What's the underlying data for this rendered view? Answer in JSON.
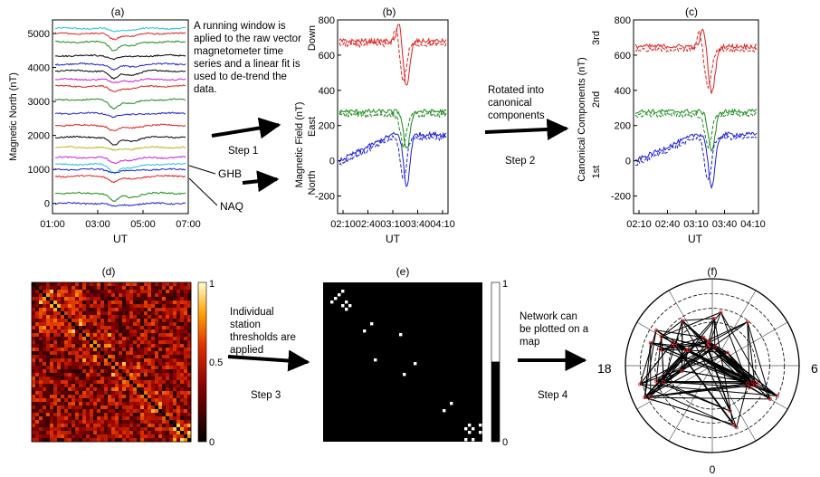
{
  "panels": {
    "a": {
      "label": "(a)",
      "ylabel": "Magnetic North (nT)",
      "xlabel": "UT",
      "yticks": [
        "0",
        "1000",
        "2000",
        "3000",
        "4000",
        "5000"
      ],
      "xticks": [
        "01:00",
        "03:00",
        "05:00",
        "07:00"
      ],
      "callouts": [
        "GHB",
        "NAQ"
      ]
    },
    "b": {
      "label": "(b)",
      "ylabel": "Magnetic Field (nT)",
      "xlabel": "UT",
      "component_labels": [
        "Down",
        "East",
        "North"
      ],
      "yticks": [
        "800",
        "600",
        "400",
        "200",
        "0",
        "-200"
      ],
      "xticks": [
        "02:10",
        "02:40",
        "03:10",
        "03:40",
        "04:10"
      ]
    },
    "c": {
      "label": "(c)",
      "ylabel": "Canonical Components (nT)",
      "xlabel": "UT",
      "component_labels": [
        "3rd",
        "2nd",
        "1st"
      ],
      "yticks": [
        "800",
        "600",
        "400",
        "200",
        "0",
        "-200"
      ],
      "xticks": [
        "02:10",
        "02:40",
        "03:10",
        "03:40",
        "04:10"
      ]
    },
    "d": {
      "label": "(d)",
      "colorbar_ticks": [
        "1",
        "0.5",
        "0"
      ]
    },
    "e": {
      "label": "(e)",
      "colorbar_ticks": [
        "1",
        "0"
      ]
    },
    "f": {
      "label": "(f)",
      "clock_labels": [
        "18",
        "6",
        "0"
      ]
    }
  },
  "annotations": {
    "text1": "A running window is aplied to the raw vector magnetometer time series and a linear fit is used to de-trend the data.",
    "text2": "Rotated into canonical components",
    "text3": "Individual station thresholds are applied",
    "text4": "Network can be plotted on a map",
    "step1": "Step 1",
    "step2": "Step 2",
    "step3": "Step 3",
    "step4": "Step 4"
  },
  "colors": {
    "red": "#e02020",
    "green": "#1a8a1a",
    "blue": "#1c1cd8",
    "cyan": "#19c6d6",
    "magenta": "#d020d0",
    "olive": "#b8b820",
    "black": "#000000"
  },
  "chart_data": [
    {
      "panel": "a",
      "type": "line",
      "x_range": [
        "01:00",
        "07:00"
      ],
      "ylim": [
        -300,
        5400
      ],
      "series": [
        {
          "color": "cyan",
          "offset": 5150
        },
        {
          "color": "red",
          "offset": 5000
        },
        {
          "color": "green",
          "offset": 4750
        },
        {
          "color": "black",
          "offset": 4350
        },
        {
          "color": "blue",
          "offset": 4100
        },
        {
          "color": "black",
          "offset": 3900
        },
        {
          "color": "magenta",
          "offset": 3650
        },
        {
          "color": "red",
          "offset": 3450
        },
        {
          "color": "green",
          "offset": 3050
        },
        {
          "color": "blue",
          "offset": 2650
        },
        {
          "color": "red",
          "offset": 2300
        },
        {
          "color": "black",
          "offset": 1950
        },
        {
          "color": "olive",
          "offset": 1650
        },
        {
          "color": "magenta",
          "offset": 1350
        },
        {
          "color": "cyan",
          "offset": 1150
        },
        {
          "color": "blue",
          "offset": 1000
        },
        {
          "color": "red",
          "offset": 800
        },
        {
          "color": "green",
          "offset": 300
        },
        {
          "color": "blue",
          "offset": 0
        }
      ]
    },
    {
      "panel": "b",
      "type": "line",
      "x_range": [
        "02:10",
        "04:10"
      ],
      "ylim": [
        -300,
        800
      ],
      "series": [
        {
          "component": "Down",
          "color": "red",
          "level": 680
        },
        {
          "component": "East",
          "color": "green",
          "level": 280
        },
        {
          "component": "North",
          "color": "blue",
          "level": 0
        }
      ]
    },
    {
      "panel": "c",
      "type": "line",
      "x_range": [
        "02:10",
        "04:10"
      ],
      "ylim": [
        -300,
        800
      ],
      "series": [
        {
          "component": "3rd",
          "color": "red",
          "level": 650
        },
        {
          "component": "2nd",
          "color": "green",
          "level": 280
        },
        {
          "component": "1st",
          "color": "blue",
          "level": 0
        }
      ]
    },
    {
      "panel": "d",
      "type": "heatmap",
      "value_range": [
        0,
        1
      ]
    },
    {
      "panel": "e",
      "type": "heatmap",
      "value_range": [
        0,
        1
      ]
    }
  ]
}
